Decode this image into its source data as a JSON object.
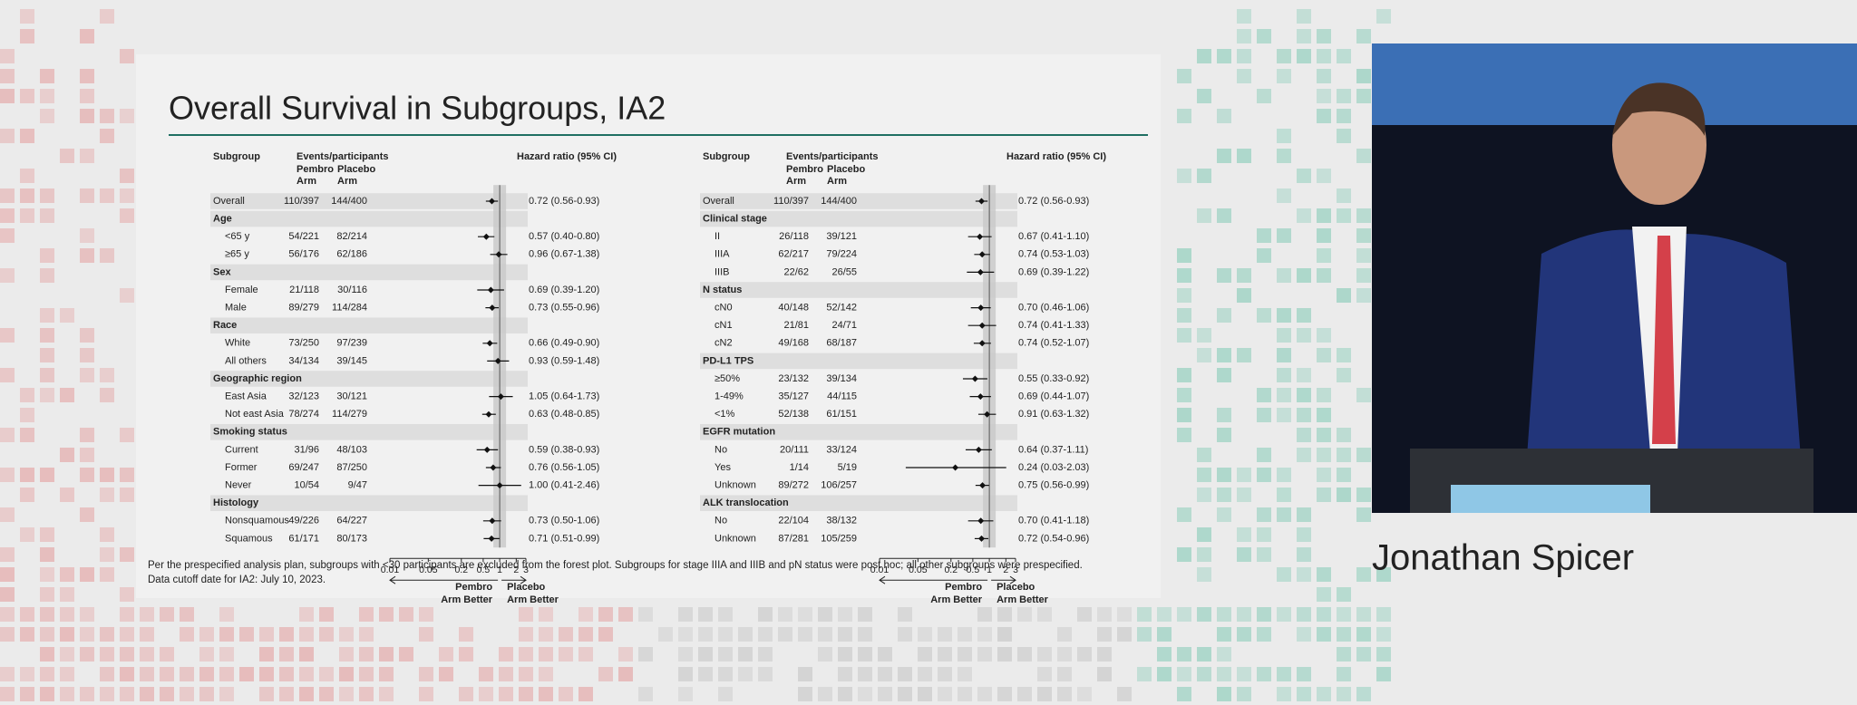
{
  "slide": {
    "title": "Overall Survival in Subgroups, IA2",
    "footnote": [
      "Per the prespecified analysis plan, subgroups with <30 participants are excluded from the forest plot. Subgroups for stage IIIA and IIIB and pN status were post hoc; all other subgroups were prespecified.",
      "Data cutoff date for IA2: July 10, 2023."
    ]
  },
  "speaker_name": "Jonathan Spicer",
  "chart_data": [
    {
      "type": "forest",
      "column_headers": [
        "Subgroup",
        "Events/participants",
        "Hazard ratio (95% CI)"
      ],
      "arm_headers": [
        [
          "Pembro",
          "Arm"
        ],
        [
          "Placebo",
          "Arm"
        ]
      ],
      "arm_colors": [
        "#1f6f62",
        "#7a1f3d"
      ],
      "categories": [
        "Overall",
        "Age",
        "<65 y",
        "≥65 y",
        "Sex",
        "Female",
        "Male",
        "Race",
        "White",
        "All others",
        "Geographic region",
        "East Asia",
        "Not east Asia",
        "Smoking status",
        "Current",
        "Former",
        "Never",
        "Histology",
        "Nonsquamous",
        "Squamous"
      ],
      "pembro": [
        "110/397",
        null,
        "54/221",
        "56/176",
        null,
        "21/118",
        "89/279",
        null,
        "73/250",
        "34/134",
        null,
        "32/123",
        "78/274",
        null,
        "31/96",
        "69/247",
        "10/54",
        null,
        "49/226",
        "61/171"
      ],
      "placebo": [
        "144/400",
        null,
        "82/214",
        "62/186",
        null,
        "30/116",
        "114/284",
        null,
        "97/239",
        "39/145",
        null,
        "30/121",
        "114/279",
        null,
        "48/103",
        "87/250",
        "9/47",
        null,
        "64/227",
        "80/173"
      ],
      "values": [
        0.72,
        null,
        0.57,
        0.96,
        null,
        0.69,
        0.73,
        null,
        0.66,
        0.93,
        null,
        1.05,
        0.63,
        null,
        0.59,
        0.76,
        1.0,
        null,
        0.73,
        0.71
      ],
      "lower": [
        0.56,
        null,
        0.4,
        0.67,
        null,
        0.39,
        0.55,
        null,
        0.49,
        0.59,
        null,
        0.64,
        0.48,
        null,
        0.38,
        0.56,
        0.41,
        null,
        0.5,
        0.51
      ],
      "upper": [
        0.93,
        null,
        0.8,
        1.38,
        null,
        1.2,
        0.96,
        null,
        0.9,
        1.48,
        null,
        1.73,
        0.85,
        null,
        0.93,
        1.05,
        2.46,
        null,
        1.06,
        0.99
      ],
      "value_labels": [
        "0.72 (0.56-0.93)",
        null,
        "0.57 (0.40-0.80)",
        "0.96 (0.67-1.38)",
        null,
        "0.69 (0.39-1.20)",
        "0.73 (0.55-0.96)",
        null,
        "0.66 (0.49-0.90)",
        "0.93 (0.59-1.48)",
        null,
        "1.05 (0.64-1.73)",
        "0.63 (0.48-0.85)",
        null,
        "0.59 (0.38-0.93)",
        "0.76 (0.56-1.05)",
        "1.00 (0.41-2.46)",
        null,
        "0.73 (0.50-1.06)",
        "0.71 (0.51-0.99)"
      ],
      "xscale": "log",
      "xlim": [
        0.01,
        3
      ],
      "xticks": [
        0.01,
        0.05,
        0.2,
        0.5,
        1,
        2,
        3
      ],
      "x_annotations": [
        [
          "Pembro",
          "Arm Better"
        ],
        [
          "Placebo",
          "Arm Better"
        ]
      ]
    },
    {
      "type": "forest",
      "column_headers": [
        "Subgroup",
        "Events/participants",
        "Hazard ratio (95% CI)"
      ],
      "arm_headers": [
        [
          "Pembro",
          "Arm"
        ],
        [
          "Placebo",
          "Arm"
        ]
      ],
      "arm_colors": [
        "#1f6f62",
        "#7a1f3d"
      ],
      "categories": [
        "Overall",
        "Clinical stage",
        "II",
        "IIIA",
        "IIIB",
        "N status",
        "cN0",
        "cN1",
        "cN2",
        "PD-L1 TPS",
        "≥50%",
        "1-49%",
        "<1%",
        "EGFR mutation",
        "No",
        "Yes",
        "Unknown",
        "ALK translocation",
        "No",
        "Unknown"
      ],
      "pembro": [
        "110/397",
        null,
        "26/118",
        "62/217",
        "22/62",
        null,
        "40/148",
        "21/81",
        "49/168",
        null,
        "23/132",
        "35/127",
        "52/138",
        null,
        "20/111",
        "1/14",
        "89/272",
        null,
        "22/104",
        "87/281"
      ],
      "placebo": [
        "144/400",
        null,
        "39/121",
        "79/224",
        "26/55",
        null,
        "52/142",
        "24/71",
        "68/187",
        null,
        "39/134",
        "44/115",
        "61/151",
        null,
        "33/124",
        "5/19",
        "106/257",
        null,
        "38/132",
        "105/259"
      ],
      "values": [
        0.72,
        null,
        0.67,
        0.74,
        0.69,
        null,
        0.7,
        0.74,
        0.74,
        null,
        0.55,
        0.69,
        0.91,
        null,
        0.64,
        0.24,
        0.75,
        null,
        0.7,
        0.72
      ],
      "lower": [
        0.56,
        null,
        0.41,
        0.53,
        0.39,
        null,
        0.46,
        0.41,
        0.52,
        null,
        0.33,
        0.44,
        0.63,
        null,
        0.37,
        0.03,
        0.56,
        null,
        0.41,
        0.54
      ],
      "upper": [
        0.93,
        null,
        1.1,
        1.03,
        1.22,
        null,
        1.06,
        1.33,
        1.07,
        null,
        0.92,
        1.07,
        1.32,
        null,
        1.11,
        2.03,
        0.99,
        null,
        1.18,
        0.96
      ],
      "value_labels": [
        "0.72 (0.56-0.93)",
        null,
        "0.67 (0.41-1.10)",
        "0.74 (0.53-1.03)",
        "0.69 (0.39-1.22)",
        null,
        "0.70 (0.46-1.06)",
        "0.74 (0.41-1.33)",
        "0.74 (0.52-1.07)",
        null,
        "0.55 (0.33-0.92)",
        "0.69 (0.44-1.07)",
        "0.91 (0.63-1.32)",
        null,
        "0.64 (0.37-1.11)",
        "0.24 (0.03-2.03)",
        "0.75 (0.56-0.99)",
        null,
        "0.70 (0.41-1.18)",
        "0.72 (0.54-0.96)"
      ],
      "xscale": "log",
      "xlim": [
        0.01,
        3
      ],
      "xticks": [
        0.01,
        0.05,
        0.2,
        0.5,
        1,
        2,
        3
      ],
      "x_annotations": [
        [
          "Pembro",
          "Arm Better"
        ],
        [
          "Placebo",
          "Arm Better"
        ]
      ]
    }
  ]
}
